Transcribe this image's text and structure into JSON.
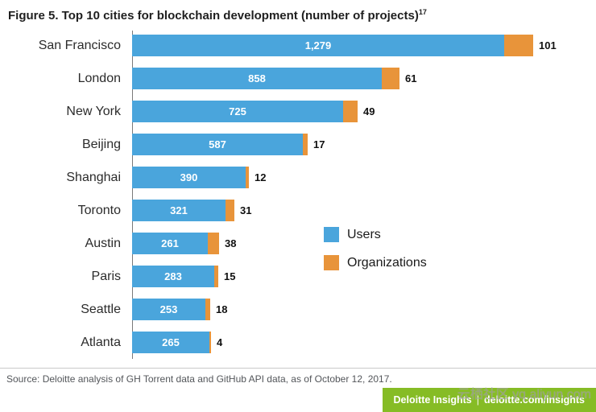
{
  "title": "Figure 5. Top 10 cities for blockchain development (number of projects)",
  "title_superscript": "17",
  "chart_data": {
    "type": "bar",
    "orientation": "horizontal",
    "stacked": true,
    "categories": [
      "San Francisco",
      "London",
      "New York",
      "Beijing",
      "Shanghai",
      "Toronto",
      "Austin",
      "Paris",
      "Seattle",
      "Atlanta"
    ],
    "series": [
      {
        "name": "Users",
        "color": "#4aa5dc",
        "values": [
          1279,
          858,
          725,
          587,
          390,
          321,
          261,
          283,
          253,
          265
        ]
      },
      {
        "name": "Organizations",
        "color": "#e8943a",
        "values": [
          101,
          61,
          49,
          17,
          12,
          31,
          38,
          15,
          18,
          4
        ]
      }
    ],
    "value_label_style": {
      "users": "inside white bold",
      "organizations": "outside black bold"
    },
    "legend_position": "middle-right",
    "axis": {
      "baseline": "left vertical line",
      "gridlines": false
    }
  },
  "legend": {
    "users_label": "Users",
    "organizations_label": "Organizations"
  },
  "source": "Source: Deloitte analysis of GH Torrent data and GitHub API data, as of October 12, 2017.",
  "footer": {
    "brand": "Deloitte Insights",
    "separator": "|",
    "link": "deloitte.com/insights",
    "background": "#86bc25"
  },
  "watermark": "云栖社区 yq.aliyun.com"
}
